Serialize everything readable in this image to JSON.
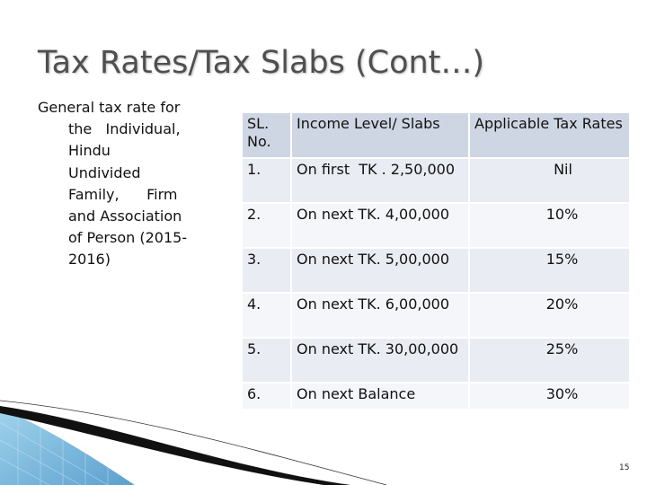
{
  "slide": {
    "title": "Tax Rates/Tax Slabs (Cont…)",
    "page_number": "15"
  },
  "description": {
    "lines": [
      "General tax rate for",
      "the   Individual,",
      "Hindu",
      "Undivided",
      "Family,      Firm",
      "and Association",
      "of Person (2015-",
      "2016)"
    ]
  },
  "table": {
    "headers": {
      "sl": "SL. No.",
      "income": "Income Level/ Slabs",
      "rate": "Applicable Tax Rates"
    },
    "rows": [
      {
        "sl": "1.",
        "income": "On first  TK . 2,50,000",
        "rate": "Nil"
      },
      {
        "sl": "2.",
        "income": "On next TK. 4,00,000",
        "rate": "10%"
      },
      {
        "sl": "3.",
        "income": "On next TK. 5,00,000",
        "rate": "15%"
      },
      {
        "sl": "4.",
        "income": "On next TK. 6,00,000",
        "rate": "20%"
      },
      {
        "sl": "5.",
        "income": "On next TK. 30,00,000",
        "rate": "25%"
      },
      {
        "sl": "6.",
        "income": "On next Balance",
        "rate": "30%"
      }
    ]
  },
  "colors": {
    "header_bg": "#cfd6e3",
    "row_alt_1": "#e9ecf2",
    "row_alt_2": "#f4f6f9",
    "title_text": "#4f4f4f",
    "decor_blue": "#5aa6d6"
  }
}
